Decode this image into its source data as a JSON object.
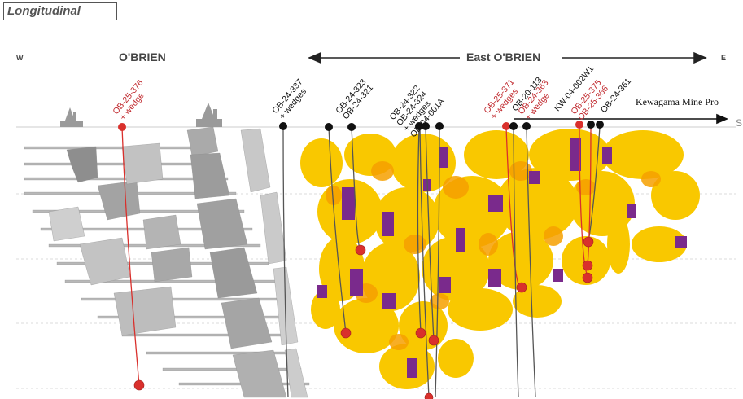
{
  "badge": "Longitudinal",
  "directions": {
    "west": "W",
    "east": "E"
  },
  "zones": {
    "obrien": "O'BRIEN",
    "east_obrien": "East O'BRIEN"
  },
  "edge_mark": "S",
  "kewagama": "Kewagama Mine Pro",
  "holes": [
    {
      "lines": [
        "OB-25-376",
        "+ wedge"
      ],
      "status": "red"
    },
    {
      "lines": [
        "OB-24-337",
        "+ wedges"
      ],
      "status": "black"
    },
    {
      "lines": [
        "OB-24-323",
        "OB-24-321"
      ],
      "status": "black"
    },
    {
      "lines": [
        "OB-24-322",
        "OB-24-324",
        "+ wedges",
        "OB-04-001A"
      ],
      "status": "black"
    },
    {
      "lines": [
        "OB-25-371",
        "+ wedges"
      ],
      "status": "red"
    },
    {
      "lines": [
        "OB-20-113"
      ],
      "status": "black"
    },
    {
      "lines": [
        "OB-24-363",
        "+ wedge"
      ],
      "status": "red"
    },
    {
      "lines": [
        "KW-04-002W1"
      ],
      "status": "black"
    },
    {
      "lines": [
        "OB-25-375",
        "OB-25-366"
      ],
      "status": "red"
    },
    {
      "lines": [
        "OB-24-361"
      ],
      "status": "black"
    }
  ],
  "colors": {
    "red_marker": "#d9302c",
    "black_marker": "#111111",
    "yellow": "#f9c800",
    "orange": "#f6a000",
    "purple": "#7a2a8c",
    "grey_workings": "#b5b5b5"
  }
}
